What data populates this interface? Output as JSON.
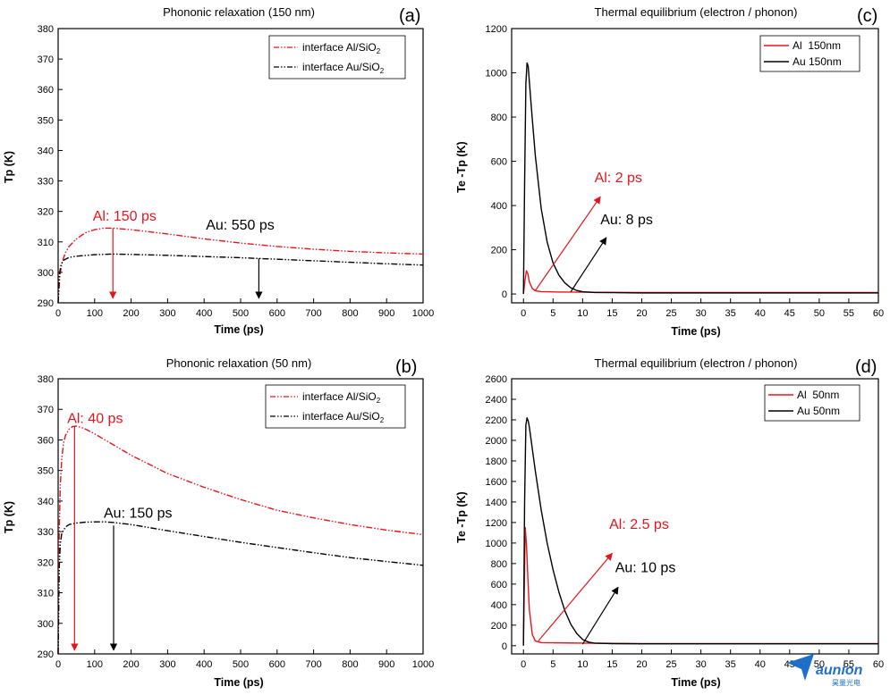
{
  "watermark": {
    "brand": "aunion",
    "sub": "昊量光电"
  },
  "chart_data": [
    {
      "id": "a",
      "type": "line",
      "panel_label": "(a)",
      "title": "Phononic relaxation (150 nm)",
      "xlabel": "Time (ps)",
      "ylabel": "Tp (K)",
      "xlim": [
        0,
        1000
      ],
      "ylim": [
        290,
        380
      ],
      "xticks": [
        0,
        100,
        200,
        300,
        400,
        500,
        600,
        700,
        800,
        900,
        1000
      ],
      "yticks": [
        290,
        300,
        310,
        320,
        330,
        340,
        350,
        360,
        370,
        380
      ],
      "legend_position": "top-right",
      "series": [
        {
          "name": "interface Al/SiO",
          "subscript": "2",
          "color": "#e8141c",
          "dash": "dashdotdot",
          "x": [
            0,
            5,
            10,
            20,
            30,
            50,
            75,
            100,
            125,
            150,
            200,
            300,
            400,
            500,
            600,
            700,
            800,
            900,
            1000
          ],
          "y": [
            290,
            299,
            303,
            306.5,
            308.5,
            311,
            313,
            314,
            314.5,
            314.5,
            314,
            312.6,
            311,
            309.6,
            308.5,
            307.6,
            306.9,
            306.4,
            306
          ]
        },
        {
          "name": "interface Au/SiO",
          "subscript": "2",
          "color": "#000000",
          "dash": "dashdotdot",
          "x": [
            0,
            3,
            8,
            15,
            30,
            50,
            100,
            150,
            200,
            300,
            400,
            500,
            600,
            700,
            800,
            900,
            1000
          ],
          "y": [
            290,
            299,
            302.5,
            304,
            304.9,
            305.3,
            305.8,
            306,
            305.9,
            305.6,
            305.2,
            304.8,
            304.3,
            303.8,
            303.3,
            302.8,
            302.4
          ]
        }
      ],
      "annotations": [
        {
          "text": "Al: 150 ps",
          "color": "#e8141c",
          "text_x": 95,
          "text_y": 317,
          "arrow_from": [
            150,
            314.5
          ],
          "arrow_to": [
            150,
            291.5
          ]
        },
        {
          "text": "Au: 550 ps",
          "color": "#000000",
          "text_x": 405,
          "text_y": 314,
          "arrow_from": [
            550,
            304.6
          ],
          "arrow_to": [
            550,
            291.5
          ]
        }
      ]
    },
    {
      "id": "b",
      "type": "line",
      "panel_label": "(b)",
      "title": "Phononic relaxation (50 nm)",
      "xlabel": "Time (ps)",
      "ylabel": "Tp (K)",
      "xlim": [
        0,
        1000
      ],
      "ylim": [
        290,
        380
      ],
      "xticks": [
        0,
        100,
        200,
        300,
        400,
        500,
        600,
        700,
        800,
        900,
        1000
      ],
      "yticks": [
        290,
        300,
        310,
        320,
        330,
        340,
        350,
        360,
        370,
        380
      ],
      "legend_position": "top-right",
      "series": [
        {
          "name": "interface Al/SiO",
          "subscript": "2",
          "color": "#e8141c",
          "dash": "dashdotdot",
          "x": [
            0,
            3,
            6,
            10,
            15,
            20,
            30,
            40,
            50,
            70,
            100,
            150,
            200,
            300,
            400,
            500,
            600,
            700,
            800,
            900,
            1000
          ],
          "y": [
            290,
            330,
            345,
            354,
            359,
            361.5,
            363.5,
            364.4,
            364.5,
            363.8,
            362,
            358.5,
            355,
            349,
            344.5,
            340.5,
            337,
            334.5,
            332.3,
            330.5,
            329
          ]
        },
        {
          "name": "interface Au/SiO",
          "subscript": "2",
          "color": "#000000",
          "dash": "dashdotdot",
          "x": [
            0,
            3,
            6,
            10,
            20,
            30,
            50,
            75,
            100,
            130,
            150,
            200,
            300,
            400,
            500,
            600,
            700,
            800,
            900,
            1000
          ],
          "y": [
            290,
            318,
            326,
            329.5,
            331.5,
            332.3,
            332.8,
            333.1,
            333.2,
            333.2,
            333,
            332.3,
            330.3,
            328.4,
            326.5,
            324.8,
            323.1,
            321.5,
            320.2,
            319
          ]
        }
      ],
      "annotations": [
        {
          "text": "Al: 40 ps",
          "color": "#e8141c",
          "text_x": 25,
          "text_y": 365.5,
          "arrow_from": [
            45,
            364.5
          ],
          "arrow_to": [
            45,
            291.2
          ]
        },
        {
          "text": "Au: 150 ps",
          "color": "#000000",
          "text_x": 125,
          "text_y": 334.5,
          "arrow_from": [
            152,
            332
          ],
          "arrow_to": [
            152,
            291.2
          ]
        }
      ]
    },
    {
      "id": "c",
      "type": "line",
      "panel_label": "(c)",
      "title": "Thermal equilibrium (electron / phonon)",
      "xlabel": "Time (ps)",
      "ylabel": "Te -Tp (K)",
      "xlim": [
        -2,
        60
      ],
      "ylim": [
        -40,
        1200
      ],
      "xticks": [
        0,
        5,
        10,
        15,
        20,
        25,
        30,
        35,
        40,
        45,
        50,
        55,
        60
      ],
      "yticks": [
        0,
        200,
        400,
        600,
        800,
        1000,
        1200
      ],
      "legend_position": "top-right",
      "series": [
        {
          "name": "Al  150nm",
          "color": "#e8141c",
          "dash": "solid",
          "x": [
            0,
            0.25,
            0.5,
            0.75,
            1,
            1.5,
            2,
            3,
            4,
            6,
            10,
            20,
            60
          ],
          "y": [
            0,
            60,
            105,
            90,
            55,
            25,
            14,
            11,
            10,
            9,
            8,
            7,
            7
          ]
        },
        {
          "name": "Au 150nm",
          "color": "#000000",
          "dash": "solid",
          "x": [
            0,
            0.2,
            0.4,
            0.6,
            0.8,
            1,
            1.5,
            2,
            3,
            4,
            5,
            6,
            7,
            8,
            9,
            10,
            12,
            15,
            20,
            60
          ],
          "y": [
            0,
            500,
            950,
            1045,
            1030,
            960,
            790,
            625,
            385,
            235,
            140,
            85,
            50,
            28,
            16,
            10,
            7,
            6,
            5,
            5
          ]
        }
      ],
      "annotations": [
        {
          "text": "Al: 2 ps",
          "color": "#e8141c",
          "text_x": 12,
          "text_y": 505,
          "arrow_from": [
            2,
            15
          ],
          "arrow_to": [
            13,
            440
          ]
        },
        {
          "text": "Au: 8 ps",
          "color": "#000000",
          "text_x": 13,
          "text_y": 315,
          "arrow_from": [
            8,
            10
          ],
          "arrow_to": [
            14,
            255
          ]
        }
      ]
    },
    {
      "id": "d",
      "type": "line",
      "panel_label": "(d)",
      "title": "Thermal equilibrium (electron / phonon)",
      "xlabel": "Time (ps)",
      "ylabel": "Te -Tp (K)",
      "xlim": [
        -2,
        60
      ],
      "ylim": [
        -80,
        2600
      ],
      "xticks": [
        0,
        5,
        10,
        15,
        20,
        25,
        30,
        35,
        40,
        45,
        50,
        55,
        60
      ],
      "yticks": [
        0,
        200,
        400,
        600,
        800,
        1000,
        1200,
        1400,
        1600,
        1800,
        2000,
        2200,
        2400,
        2600
      ],
      "legend_position": "top-right",
      "series": [
        {
          "name": "Al  50nm",
          "color": "#e8141c",
          "dash": "solid",
          "x": [
            0,
            0.15,
            0.3,
            0.5,
            0.75,
            1,
            1.5,
            2,
            3,
            5,
            10,
            20,
            60
          ],
          "y": [
            0,
            600,
            1150,
            1000,
            650,
            350,
            110,
            45,
            30,
            28,
            25,
            20,
            20
          ]
        },
        {
          "name": "Au 50nm",
          "color": "#000000",
          "dash": "solid",
          "x": [
            0,
            0.2,
            0.4,
            0.6,
            0.8,
            1,
            2,
            3,
            4,
            5,
            6,
            7,
            8,
            9,
            10,
            11,
            12,
            15,
            20,
            60
          ],
          "y": [
            0,
            1400,
            2150,
            2220,
            2190,
            2130,
            1700,
            1320,
            1000,
            740,
            520,
            340,
            210,
            120,
            60,
            35,
            25,
            20,
            18,
            18
          ]
        }
      ],
      "annotations": [
        {
          "text": "Al: 2.5 ps",
          "color": "#e8141c",
          "text_x": 14.5,
          "text_y": 1140,
          "arrow_from": [
            2.5,
            45
          ],
          "arrow_to": [
            15,
            900
          ]
        },
        {
          "text": "Au: 10 ps",
          "color": "#000000",
          "text_x": 15.5,
          "text_y": 715,
          "arrow_from": [
            10,
            15
          ],
          "arrow_to": [
            16,
            570
          ]
        }
      ]
    }
  ]
}
